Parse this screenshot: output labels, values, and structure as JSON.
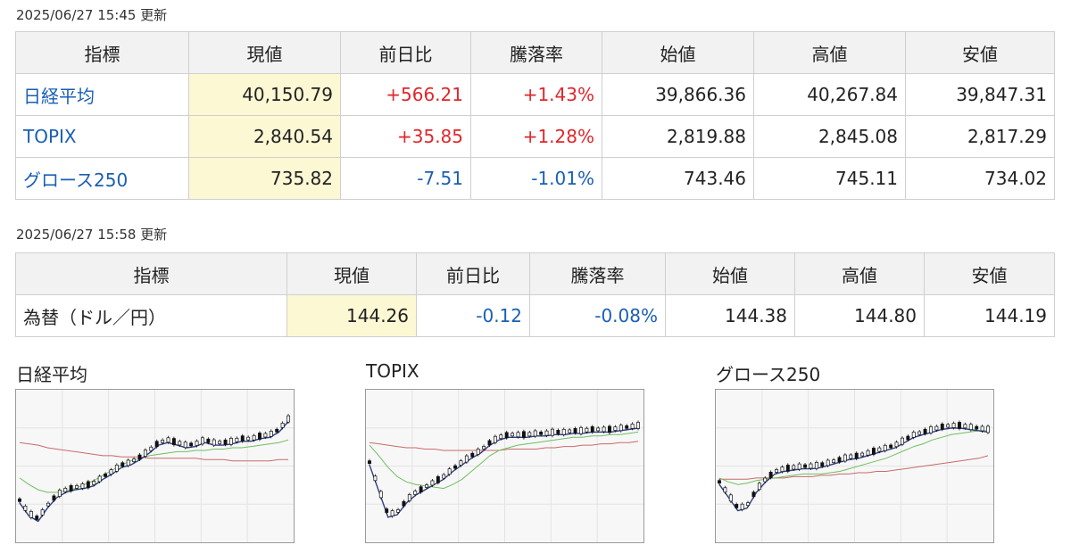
{
  "stocks": {
    "timestamp": "2025/06/27 15:45 更新",
    "headers": [
      "指標",
      "現値",
      "前日比",
      "騰落率",
      "始値",
      "高値",
      "安値"
    ],
    "rows": [
      {
        "name": "日経平均",
        "current": "40,150.79",
        "change": "+566.21",
        "pct": "+1.43%",
        "open": "39,866.36",
        "high": "40,267.84",
        "low": "39,847.31",
        "dir": "up"
      },
      {
        "name": "TOPIX",
        "current": "2,840.54",
        "change": "+35.85",
        "pct": "+1.28%",
        "open": "2,819.88",
        "high": "2,845.08",
        "low": "2,817.29",
        "dir": "up"
      },
      {
        "name": "グロース250",
        "current": "735.82",
        "change": "-7.51",
        "pct": "-1.01%",
        "open": "743.46",
        "high": "745.11",
        "low": "734.02",
        "dir": "down"
      }
    ]
  },
  "fx": {
    "timestamp": "2025/06/27 15:58 更新",
    "headers": [
      "指標",
      "現値",
      "前日比",
      "騰落率",
      "始値",
      "高値",
      "安値"
    ],
    "row": {
      "name": "為替（ドル／円）",
      "current": "144.26",
      "change": "-0.12",
      "pct": "-0.08%",
      "open": "144.38",
      "high": "144.80",
      "low": "144.19",
      "dir": "down"
    }
  },
  "charts": [
    {
      "title": "日経平均"
    },
    {
      "title": "TOPIX"
    },
    {
      "title": "グロース250"
    }
  ],
  "chart_data": [
    {
      "type": "line",
      "title": "日経平均",
      "candles": true,
      "series": [
        {
          "values": [
            0.74,
            0.84,
            0.88,
            0.78,
            0.7,
            0.66,
            0.64,
            0.63,
            0.61,
            0.56,
            0.52,
            0.47,
            0.45,
            0.41,
            0.36,
            0.3,
            0.28,
            0.3,
            0.32,
            0.31,
            0.28,
            0.3,
            0.3,
            0.29,
            0.27,
            0.27,
            0.25,
            0.24,
            0.2,
            0.12
          ]
        },
        {
          "values": [
            0.55,
            0.6,
            0.64,
            0.66,
            0.66,
            0.65,
            0.63,
            0.6,
            0.57,
            0.53,
            0.49,
            0.45,
            0.42,
            0.4,
            0.38,
            0.37,
            0.36,
            0.35,
            0.35,
            0.34,
            0.34,
            0.33,
            0.33,
            0.32,
            0.32,
            0.31,
            0.3,
            0.29,
            0.28,
            0.26
          ]
        },
        {
          "values": [
            0.28,
            0.29,
            0.3,
            0.32,
            0.33,
            0.34,
            0.35,
            0.36,
            0.37,
            0.38,
            0.38,
            0.39,
            0.39,
            0.39,
            0.4,
            0.4,
            0.4,
            0.4,
            0.4,
            0.4,
            0.41,
            0.41,
            0.41,
            0.42,
            0.42,
            0.42,
            0.42,
            0.42,
            0.41,
            0.41
          ]
        }
      ]
    },
    {
      "type": "line",
      "title": "TOPIX",
      "candles": true,
      "series": [
        {
          "values": [
            0.45,
            0.65,
            0.85,
            0.83,
            0.74,
            0.68,
            0.64,
            0.6,
            0.56,
            0.5,
            0.45,
            0.4,
            0.36,
            0.3,
            0.26,
            0.24,
            0.24,
            0.24,
            0.23,
            0.23,
            0.22,
            0.22,
            0.21,
            0.21,
            0.2,
            0.2,
            0.2,
            0.19,
            0.18,
            0.17
          ]
        },
        {
          "values": [
            0.3,
            0.38,
            0.47,
            0.54,
            0.58,
            0.6,
            0.61,
            0.62,
            0.63,
            0.6,
            0.56,
            0.5,
            0.44,
            0.38,
            0.34,
            0.32,
            0.3,
            0.29,
            0.28,
            0.27,
            0.26,
            0.25,
            0.24,
            0.24,
            0.23,
            0.23,
            0.22,
            0.22,
            0.21,
            0.2
          ]
        },
        {
          "values": [
            0.28,
            0.29,
            0.3,
            0.31,
            0.32,
            0.32,
            0.33,
            0.33,
            0.34,
            0.34,
            0.34,
            0.34,
            0.34,
            0.34,
            0.34,
            0.33,
            0.33,
            0.33,
            0.33,
            0.32,
            0.32,
            0.31,
            0.31,
            0.3,
            0.3,
            0.29,
            0.29,
            0.28,
            0.28,
            0.27
          ]
        }
      ]
    },
    {
      "type": "line",
      "title": "グロース250",
      "candles": true,
      "series": [
        {
          "values": [
            0.6,
            0.7,
            0.8,
            0.78,
            0.66,
            0.58,
            0.52,
            0.5,
            0.49,
            0.48,
            0.48,
            0.47,
            0.45,
            0.43,
            0.41,
            0.4,
            0.38,
            0.36,
            0.34,
            0.32,
            0.28,
            0.24,
            0.22,
            0.2,
            0.18,
            0.17,
            0.17,
            0.18,
            0.19,
            0.2
          ]
        },
        {
          "values": [
            0.55,
            0.58,
            0.6,
            0.59,
            0.57,
            0.56,
            0.55,
            0.54,
            0.53,
            0.52,
            0.52,
            0.52,
            0.51,
            0.5,
            0.48,
            0.46,
            0.44,
            0.42,
            0.4,
            0.37,
            0.34,
            0.31,
            0.29,
            0.26,
            0.24,
            0.22,
            0.21,
            0.2,
            0.19,
            0.19
          ]
        },
        {
          "values": [
            0.56,
            0.56,
            0.56,
            0.56,
            0.55,
            0.55,
            0.55,
            0.55,
            0.54,
            0.54,
            0.54,
            0.53,
            0.53,
            0.52,
            0.52,
            0.51,
            0.51,
            0.5,
            0.5,
            0.49,
            0.48,
            0.47,
            0.46,
            0.45,
            0.44,
            0.43,
            0.42,
            0.41,
            0.4,
            0.38
          ]
        }
      ]
    }
  ]
}
